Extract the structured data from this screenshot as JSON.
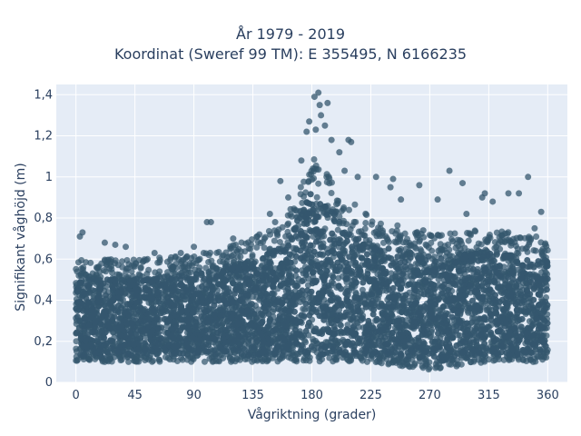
{
  "title_line1": "År 1979 - 2019",
  "title_line2": "Koordinat (Sweref 99 TM): E 355495, N 6166235",
  "chart_data": {
    "type": "scatter",
    "xlabel": "Vågriktning (grader)",
    "ylabel": "Signifikant våghöjd (m)",
    "xlim": [
      -15,
      375
    ],
    "ylim": [
      0,
      1.45
    ],
    "x_ticks": [
      0,
      45,
      90,
      135,
      180,
      225,
      270,
      315,
      360
    ],
    "x_tick_labels": [
      "0",
      "45",
      "90",
      "135",
      "180",
      "225",
      "270",
      "315",
      "360"
    ],
    "y_ticks": [
      0,
      0.2,
      0.4,
      0.6,
      0.8,
      1.0,
      1.2,
      1.4
    ],
    "y_tick_labels": [
      "0",
      "0,2",
      "0,4",
      "0,6",
      "0,8",
      "1",
      "1,2",
      "1,4"
    ],
    "marker_color": "#34576e",
    "plot_bg": "#e5ecf6",
    "grid": true,
    "envelope": {
      "direction": [
        0,
        45,
        90,
        135,
        160,
        180,
        200,
        225,
        270,
        315,
        360
      ],
      "min_height": [
        0.1,
        0.1,
        0.1,
        0.1,
        0.1,
        0.1,
        0.1,
        0.1,
        0.06,
        0.1,
        0.1
      ],
      "max_height": [
        0.6,
        0.6,
        0.62,
        0.7,
        0.8,
        1.1,
        0.95,
        0.8,
        0.72,
        0.75,
        0.7
      ]
    },
    "outliers": [
      {
        "x": 185,
        "y": 1.41
      },
      {
        "x": 182,
        "y": 1.39
      },
      {
        "x": 186,
        "y": 1.35
      },
      {
        "x": 192,
        "y": 1.36
      },
      {
        "x": 178,
        "y": 1.27
      },
      {
        "x": 187,
        "y": 1.3
      },
      {
        "x": 183,
        "y": 1.23
      },
      {
        "x": 190,
        "y": 1.25
      },
      {
        "x": 195,
        "y": 1.18
      },
      {
        "x": 176,
        "y": 1.22
      },
      {
        "x": 201,
        "y": 1.12
      },
      {
        "x": 208,
        "y": 1.18
      },
      {
        "x": 210,
        "y": 1.17
      },
      {
        "x": 172,
        "y": 1.08
      },
      {
        "x": 205,
        "y": 1.03
      },
      {
        "x": 215,
        "y": 1.0
      },
      {
        "x": 229,
        "y": 1.0
      },
      {
        "x": 242,
        "y": 0.99
      },
      {
        "x": 285,
        "y": 1.03
      },
      {
        "x": 295,
        "y": 0.97
      },
      {
        "x": 345,
        "y": 1.0
      },
      {
        "x": 262,
        "y": 0.96
      },
      {
        "x": 240,
        "y": 0.95
      },
      {
        "x": 312,
        "y": 0.92
      },
      {
        "x": 330,
        "y": 0.92
      },
      {
        "x": 338,
        "y": 0.92
      },
      {
        "x": 276,
        "y": 0.89
      },
      {
        "x": 248,
        "y": 0.89
      },
      {
        "x": 310,
        "y": 0.9
      },
      {
        "x": 156,
        "y": 0.98
      },
      {
        "x": 148,
        "y": 0.82
      },
      {
        "x": 162,
        "y": 0.9
      },
      {
        "x": 100,
        "y": 0.78
      },
      {
        "x": 103,
        "y": 0.78
      },
      {
        "x": 140,
        "y": 0.72
      },
      {
        "x": 152,
        "y": 0.78
      },
      {
        "x": 318,
        "y": 0.88
      },
      {
        "x": 355,
        "y": 0.83
      },
      {
        "x": 3,
        "y": 0.71
      },
      {
        "x": 5,
        "y": 0.73
      },
      {
        "x": 22,
        "y": 0.68
      },
      {
        "x": 30,
        "y": 0.67
      },
      {
        "x": 38,
        "y": 0.66
      },
      {
        "x": 60,
        "y": 0.63
      },
      {
        "x": 80,
        "y": 0.63
      },
      {
        "x": 90,
        "y": 0.66
      },
      {
        "x": 120,
        "y": 0.7
      },
      {
        "x": 350,
        "y": 0.75
      },
      {
        "x": 265,
        "y": 0.74
      },
      {
        "x": 298,
        "y": 0.82
      }
    ]
  }
}
